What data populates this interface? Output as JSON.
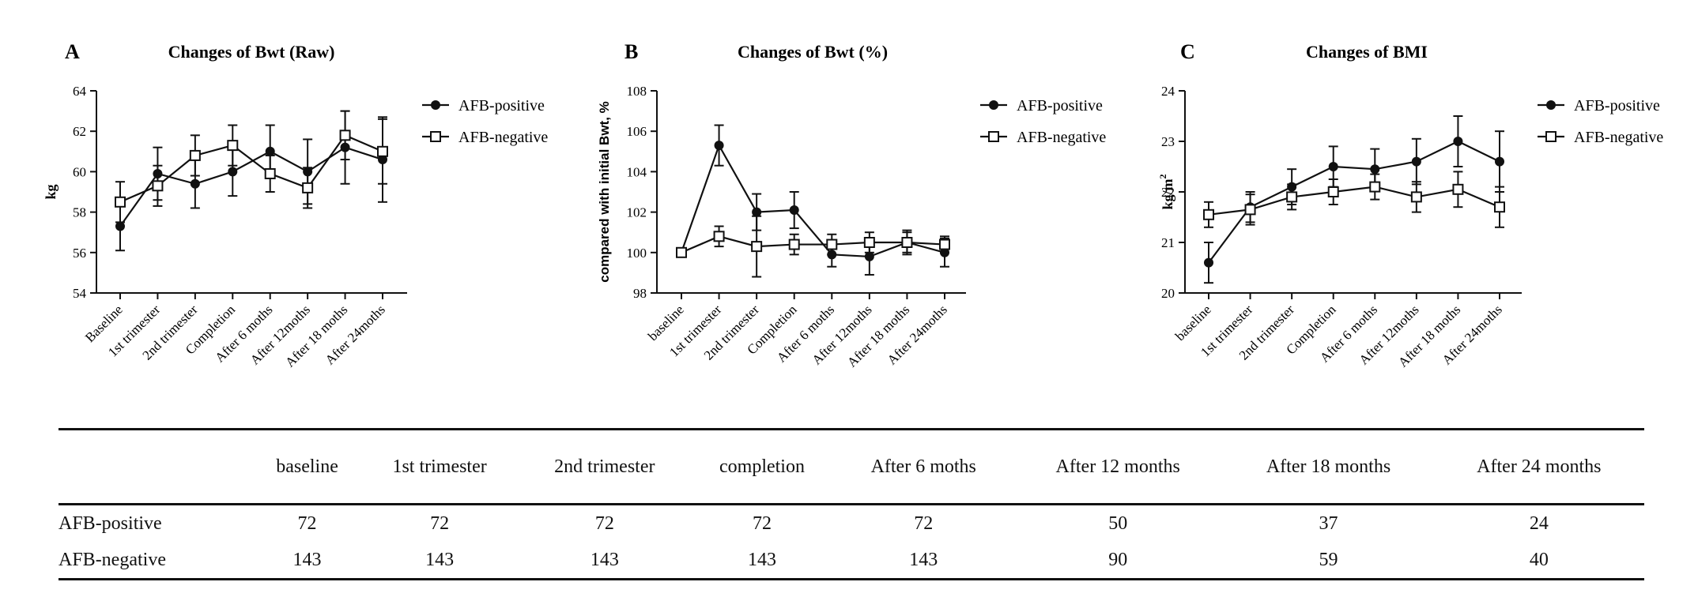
{
  "chart_data": [
    {
      "type": "line",
      "panel": "A",
      "title": "Changes of Bwt (Raw)",
      "xlabel": "",
      "ylabel": "kg",
      "ylim": [
        54,
        64
      ],
      "yticks": [
        54,
        56,
        58,
        60,
        62,
        64
      ],
      "categories": [
        "Baseline",
        "1st trimester",
        "2nd trimester",
        "Completion",
        "After 6 moths",
        "After 12moths",
        "After 18 moths",
        "After 24moths"
      ],
      "series": [
        {
          "name": "AFB-positive",
          "marker": "filled-circle",
          "values": [
            57.3,
            59.9,
            59.4,
            60.0,
            61.0,
            60.0,
            61.2,
            60.6
          ],
          "error": [
            1.2,
            1.3,
            1.2,
            1.2,
            1.3,
            1.6,
            1.8,
            2.1
          ]
        },
        {
          "name": "AFB-negative",
          "marker": "open-square",
          "values": [
            58.5,
            59.3,
            60.8,
            61.3,
            59.9,
            59.2,
            61.8,
            61.0
          ],
          "error": [
            1.0,
            1.0,
            1.0,
            1.0,
            0.9,
            1.0,
            1.2,
            1.6
          ]
        }
      ],
      "legend_position": "right"
    },
    {
      "type": "line",
      "panel": "B",
      "title": "Changes of Bwt (%)",
      "xlabel": "",
      "ylabel": "compared with initial Bwt, %",
      "ylim": [
        98,
        108
      ],
      "yticks": [
        98,
        100,
        102,
        104,
        106,
        108
      ],
      "categories": [
        "baseline",
        "1st trimester",
        "2nd trimester",
        "Completion",
        "After 6 moths",
        "After 12moths",
        "After 18 moths",
        "After 24moths"
      ],
      "series": [
        {
          "name": "AFB-positive",
          "marker": "filled-circle",
          "values": [
            100.0,
            105.3,
            102.0,
            102.1,
            99.9,
            99.8,
            100.5,
            100.0
          ],
          "error": [
            0.0,
            1.0,
            0.9,
            0.9,
            0.6,
            0.9,
            0.6,
            0.7
          ]
        },
        {
          "name": "AFB-negative",
          "marker": "open-square",
          "values": [
            100.0,
            100.8,
            100.3,
            100.4,
            100.4,
            100.5,
            100.5,
            100.4
          ],
          "error": [
            0.0,
            0.5,
            1.5,
            0.5,
            0.5,
            0.5,
            0.5,
            0.4
          ]
        }
      ],
      "legend_position": "right"
    },
    {
      "type": "line",
      "panel": "C",
      "title": "Changes of BMI",
      "xlabel": "",
      "ylabel": "kg/m",
      "ylabel_superscript": "2",
      "ylim": [
        20,
        24
      ],
      "yticks": [
        20,
        21,
        22,
        23,
        24
      ],
      "categories": [
        "baseline",
        "1st trimester",
        "2nd trimester",
        "Completion",
        "After 6 moths",
        "After 12moths",
        "After 18 moths",
        "After 24moths"
      ],
      "series": [
        {
          "name": "AFB-positive",
          "marker": "filled-circle",
          "values": [
            20.6,
            21.7,
            22.1,
            22.5,
            22.45,
            22.6,
            23.0,
            22.6
          ],
          "error": [
            0.4,
            0.3,
            0.35,
            0.4,
            0.4,
            0.45,
            0.5,
            0.6
          ]
        },
        {
          "name": "AFB-negative",
          "marker": "open-square",
          "values": [
            21.55,
            21.65,
            21.9,
            22.0,
            22.1,
            21.9,
            22.05,
            21.7
          ],
          "error": [
            0.25,
            0.3,
            0.25,
            0.25,
            0.25,
            0.3,
            0.35,
            0.4
          ]
        }
      ],
      "legend_position": "right"
    }
  ],
  "table": {
    "headers": [
      "",
      "baseline",
      "1st trimester",
      "2nd trimester",
      "completion",
      "After 6 moths",
      "After 12 months",
      "After 18 months",
      "After 24 months"
    ],
    "rows": [
      [
        "AFB-positive",
        "72",
        "72",
        "72",
        "72",
        "72",
        "50",
        "37",
        "24"
      ],
      [
        "AFB-negative",
        "143",
        "143",
        "143",
        "143",
        "143",
        "90",
        "59",
        "40"
      ]
    ]
  }
}
